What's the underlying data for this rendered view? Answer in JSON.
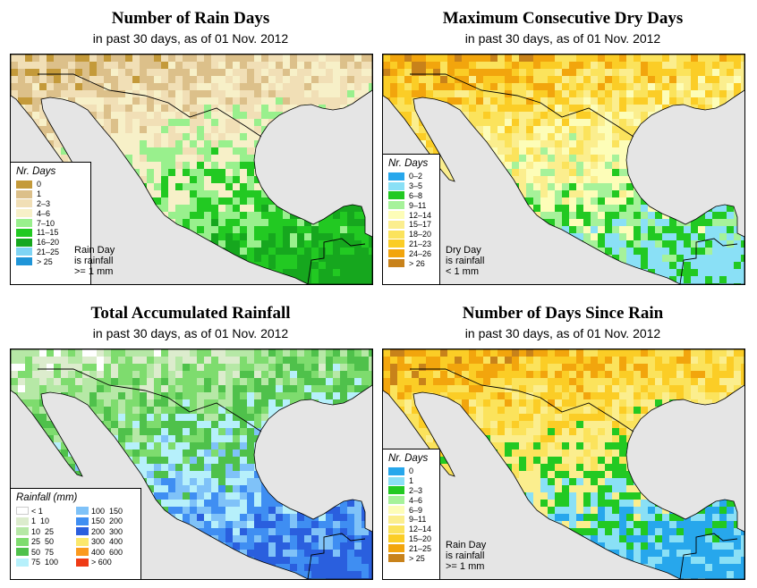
{
  "colors": {
    "ocean": "#e5e5e5",
    "border": "#000000",
    "rain_days": [
      "#c49a3a",
      "#dcc08a",
      "#f1dfb6",
      "#f7f0c8",
      "#99f08d",
      "#22c922",
      "#16a71e",
      "#7fd4f4",
      "#1f95d8"
    ],
    "dry_days": [
      "#27a7ec",
      "#8ae0f6",
      "#22c922",
      "#a6f29a",
      "#fdfdb8",
      "#fbee8e",
      "#fbe35c",
      "#fbcd26",
      "#f2a50d",
      "#c8821a"
    ],
    "rainfall_left": [
      "#ffffff",
      "#dceccd",
      "#b6e8a6",
      "#7edc6e",
      "#4fc14b",
      "#b6f0fb"
    ],
    "rainfall_right": [
      "#7fc2f8",
      "#3f8ef2",
      "#2a5fde",
      "#fbe86c",
      "#fb9a1e",
      "#ef3b16"
    ],
    "since_rain": [
      "#27a7ec",
      "#8ae0f6",
      "#22c922",
      "#a6f29a",
      "#fdfdb8",
      "#fbee8e",
      "#fbe35c",
      "#fbcd26",
      "#f2a50d",
      "#c8821a"
    ]
  },
  "panels": [
    {
      "title": "Number of Rain Days",
      "subtitle": "in past 30 days, as of  01 Nov. 2012",
      "legend_title": "Nr. Days",
      "legend_labels": [
        "0",
        "1",
        "2–3",
        "4–6",
        "7–10",
        "11–15",
        "16–20",
        "21–25",
        "> 25"
      ],
      "note": [
        "Rain Day",
        "is rainfall",
        ">= 1 mm"
      ],
      "map_palette": [
        "#c49a3a",
        "#dcc08a",
        "#f1dfb6",
        "#f7f0c8",
        "#99f08d",
        "#22c922",
        "#16a71e"
      ]
    },
    {
      "title": "Maximum Consecutive Dry Days",
      "subtitle": "in past 30 days, as of  01 Nov. 2012",
      "legend_title": "Nr. Days",
      "legend_labels": [
        "0–2",
        "3–5",
        "6–8",
        "9–11",
        "12–14",
        "15–17",
        "18–20",
        "21–23",
        "24–26",
        "> 26"
      ],
      "note": [
        "Dry Day",
        "is rainfall",
        "< 1 mm"
      ],
      "map_palette": [
        "#c8821a",
        "#f2a50d",
        "#fbcd26",
        "#fbe35c",
        "#fbee8e",
        "#fdfdb8",
        "#a6f29a",
        "#22c922",
        "#8ae0f6"
      ]
    },
    {
      "title": "Total Accumulated Rainfall",
      "subtitle": "in past 30 days, as of  01 Nov. 2012",
      "legend_title": "Rainfall (mm)",
      "legend_left": [
        [
          "< 1",
          ""
        ],
        [
          "1",
          "10"
        ],
        [
          "10",
          "25"
        ],
        [
          "25",
          "50"
        ],
        [
          "50",
          "75"
        ],
        [
          "75",
          "100"
        ]
      ],
      "legend_right": [
        [
          "100",
          "150"
        ],
        [
          "150",
          "200"
        ],
        [
          "200",
          "300"
        ],
        [
          "300",
          "400"
        ],
        [
          "400",
          "600"
        ],
        [
          "> 600",
          ""
        ]
      ],
      "map_palette": [
        "#ffffff",
        "#dceccd",
        "#b6e8a6",
        "#7edc6e",
        "#4fc14b",
        "#b6f0fb",
        "#7fc2f8",
        "#3f8ef2",
        "#2a5fde"
      ]
    },
    {
      "title": "Number of Days Since Rain",
      "subtitle": "in past 30 days, as of  01 Nov. 2012",
      "legend_title": "Nr. Days",
      "legend_labels": [
        "0",
        "1",
        "2–3",
        "4–6",
        "6–9",
        "9–11",
        "12–14",
        "15–20",
        "21–25",
        "> 25"
      ],
      "note": [
        "Rain Day",
        "is rainfall",
        ">= 1 mm"
      ],
      "map_palette": [
        "#c8821a",
        "#f2a50d",
        "#fbcd26",
        "#fbe35c",
        "#fbee8e",
        "#22c922",
        "#8ae0f6",
        "#27a7ec"
      ]
    }
  ]
}
